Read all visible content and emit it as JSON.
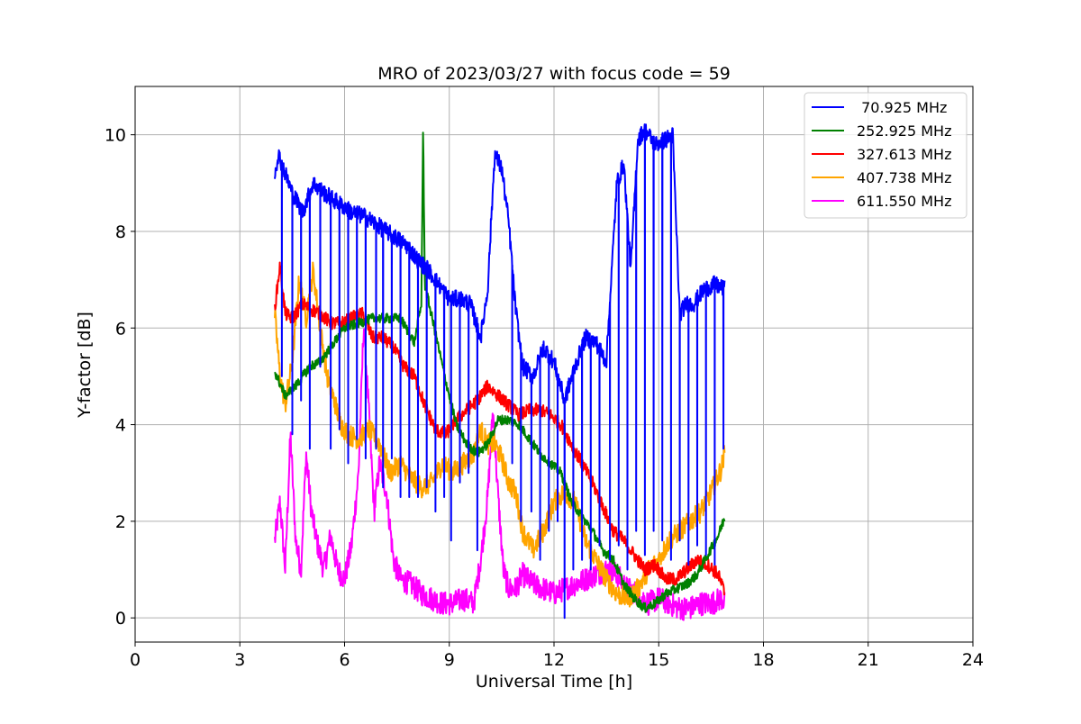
{
  "chart_data": {
    "type": "line",
    "title": "MRO of 2023/03/27 with focus code = 59",
    "xlabel": "Universal Time [h]",
    "ylabel": "Y-factor [dB]",
    "xlim": [
      0,
      24
    ],
    "ylim": [
      -0.5,
      11
    ],
    "xticks": [
      0,
      3,
      6,
      9,
      12,
      15,
      18,
      21,
      24
    ],
    "yticks": [
      0,
      2,
      4,
      6,
      8,
      10
    ],
    "grid": true,
    "legend_position": "top-right",
    "series": [
      {
        "name": " 70.925 MHz",
        "color": "#0000ff",
        "x": [
          4.0,
          4.1,
          4.3,
          4.5,
          4.8,
          5.1,
          5.4,
          5.8,
          6.2,
          6.6,
          7.0,
          7.4,
          7.8,
          8.1,
          8.4,
          8.7,
          9.0,
          9.3,
          9.6,
          9.9,
          10.1,
          10.3,
          10.5,
          10.7,
          10.9,
          11.1,
          11.4,
          11.7,
          12.0,
          12.3,
          12.6,
          12.9,
          13.2,
          13.5,
          13.8,
          14.0,
          14.2,
          14.4,
          14.6,
          14.9,
          15.2,
          15.4,
          15.6,
          15.8,
          16.0,
          16.3,
          16.6,
          16.9
        ],
        "y": [
          9.2,
          9.6,
          9.2,
          8.8,
          8.4,
          9.0,
          8.8,
          8.6,
          8.4,
          8.3,
          8.1,
          7.9,
          7.7,
          7.4,
          7.2,
          6.9,
          6.6,
          6.6,
          6.5,
          5.8,
          6.8,
          9.6,
          9.3,
          8.2,
          6.4,
          5.2,
          5.0,
          5.6,
          5.3,
          4.5,
          5.2,
          5.8,
          5.7,
          5.3,
          9.0,
          9.4,
          7.2,
          9.9,
          10.1,
          9.8,
          9.9,
          10.0,
          6.3,
          6.5,
          6.5,
          6.8,
          6.9,
          6.8
        ],
        "dips": [
          {
            "x": 4.2,
            "y": 5.0
          },
          {
            "x": 4.5,
            "y": 3.8
          },
          {
            "x": 4.75,
            "y": 4.5
          },
          {
            "x": 5.0,
            "y": 3.5
          },
          {
            "x": 5.3,
            "y": 5.2
          },
          {
            "x": 5.6,
            "y": 3.5
          },
          {
            "x": 5.85,
            "y": 3.9
          },
          {
            "x": 6.1,
            "y": 3.2
          },
          {
            "x": 6.35,
            "y": 3.7
          },
          {
            "x": 6.6,
            "y": 3.3
          },
          {
            "x": 6.9,
            "y": 3.5
          },
          {
            "x": 7.1,
            "y": 2.7
          },
          {
            "x": 7.35,
            "y": 3.3
          },
          {
            "x": 7.6,
            "y": 2.5
          },
          {
            "x": 7.85,
            "y": 2.5
          },
          {
            "x": 8.1,
            "y": 2.5
          },
          {
            "x": 8.35,
            "y": 2.7
          },
          {
            "x": 8.6,
            "y": 2.2
          },
          {
            "x": 8.85,
            "y": 2.5
          },
          {
            "x": 9.05,
            "y": 1.6
          },
          {
            "x": 9.3,
            "y": 2.8
          },
          {
            "x": 9.55,
            "y": 3.0
          },
          {
            "x": 9.8,
            "y": 1.4
          },
          {
            "x": 10.8,
            "y": 3.2
          },
          {
            "x": 11.05,
            "y": 2.0
          },
          {
            "x": 11.35,
            "y": 2.2
          },
          {
            "x": 11.6,
            "y": 1.2
          },
          {
            "x": 11.85,
            "y": 1.8
          },
          {
            "x": 12.1,
            "y": 2.0
          },
          {
            "x": 12.3,
            "y": 0.0
          },
          {
            "x": 12.55,
            "y": 1.0
          },
          {
            "x": 12.8,
            "y": 1.2
          },
          {
            "x": 13.05,
            "y": 1.0
          },
          {
            "x": 13.3,
            "y": 1.5
          },
          {
            "x": 13.6,
            "y": 1.2
          },
          {
            "x": 13.85,
            "y": 1.5
          },
          {
            "x": 14.1,
            "y": 1.0
          },
          {
            "x": 14.35,
            "y": 1.8
          },
          {
            "x": 14.6,
            "y": 1.3
          },
          {
            "x": 14.85,
            "y": 1.8
          },
          {
            "x": 15.1,
            "y": 1.6
          },
          {
            "x": 15.35,
            "y": 1.2
          },
          {
            "x": 15.6,
            "y": 1.6
          },
          {
            "x": 15.85,
            "y": 1.1
          },
          {
            "x": 16.1,
            "y": 1.5
          },
          {
            "x": 16.35,
            "y": 1.3
          },
          {
            "x": 16.6,
            "y": 1.1
          },
          {
            "x": 16.85,
            "y": 3.5
          }
        ]
      },
      {
        "name": "252.925 MHz",
        "color": "#008000",
        "x": [
          4.0,
          4.3,
          4.6,
          5.0,
          5.3,
          5.6,
          6.0,
          6.4,
          6.8,
          7.2,
          7.6,
          8.0,
          8.2,
          8.25,
          8.3,
          8.6,
          8.9,
          9.2,
          9.5,
          9.8,
          10.1,
          10.4,
          10.7,
          11.0,
          11.3,
          11.6,
          11.9,
          12.2,
          12.5,
          12.8,
          13.1,
          13.4,
          13.7,
          14.0,
          14.3,
          14.6,
          14.9,
          15.2,
          15.5,
          15.8,
          16.1,
          16.4,
          16.7,
          16.9
        ],
        "y": [
          5.1,
          4.6,
          4.8,
          5.2,
          5.3,
          5.6,
          6.0,
          6.1,
          6.2,
          6.2,
          6.2,
          5.7,
          6.5,
          10.1,
          6.9,
          5.9,
          4.9,
          4.0,
          3.6,
          3.4,
          3.6,
          4.1,
          4.1,
          4.0,
          3.7,
          3.4,
          3.2,
          3.0,
          2.4,
          2.1,
          1.8,
          1.4,
          1.2,
          0.7,
          0.4,
          0.2,
          0.3,
          0.5,
          0.6,
          0.7,
          0.9,
          1.3,
          1.7,
          2.1
        ]
      },
      {
        "name": "327.613 MHz",
        "color": "#ff0000",
        "x": [
          4.0,
          4.15,
          4.3,
          4.5,
          4.8,
          5.0,
          5.3,
          5.6,
          5.9,
          6.2,
          6.5,
          6.8,
          7.1,
          7.4,
          7.7,
          8.0,
          8.3,
          8.6,
          8.9,
          9.2,
          9.5,
          9.8,
          10.1,
          10.4,
          10.7,
          11.0,
          11.3,
          11.6,
          11.9,
          12.2,
          12.5,
          12.8,
          13.1,
          13.4,
          13.7,
          14.0,
          14.3,
          14.6,
          14.9,
          15.2,
          15.5,
          15.8,
          16.1,
          16.4,
          16.7,
          16.9
        ],
        "y": [
          6.4,
          7.3,
          6.3,
          6.2,
          6.5,
          6.4,
          6.3,
          6.1,
          6.1,
          6.2,
          6.3,
          5.8,
          5.8,
          5.6,
          5.2,
          5.0,
          4.4,
          3.9,
          3.8,
          4.1,
          4.3,
          4.5,
          4.8,
          4.6,
          4.4,
          4.2,
          4.3,
          4.3,
          4.2,
          4.0,
          3.6,
          3.2,
          2.8,
          2.3,
          1.8,
          1.6,
          1.3,
          1.0,
          1.1,
          0.8,
          0.8,
          1.0,
          1.2,
          1.1,
          0.9,
          0.5
        ]
      },
      {
        "name": "407.738 MHz",
        "color": "#ffa500",
        "x": [
          4.0,
          4.15,
          4.3,
          4.5,
          4.7,
          4.9,
          5.1,
          5.3,
          5.5,
          5.7,
          5.9,
          6.1,
          6.4,
          6.7,
          7.0,
          7.3,
          7.6,
          7.9,
          8.2,
          8.5,
          8.8,
          9.1,
          9.4,
          9.7,
          9.9,
          10.1,
          10.3,
          10.5,
          10.7,
          10.9,
          11.1,
          11.4,
          11.7,
          12.0,
          12.3,
          12.6,
          12.9,
          13.2,
          13.5,
          13.8,
          14.1,
          14.4,
          14.7,
          15.0,
          15.3,
          15.6,
          15.9,
          16.2,
          16.5,
          16.8,
          16.9
        ],
        "y": [
          6.3,
          5.0,
          4.4,
          5.3,
          7.0,
          6.2,
          7.2,
          6.0,
          5.0,
          4.5,
          4.0,
          3.8,
          3.7,
          3.9,
          3.6,
          3.0,
          3.2,
          2.9,
          2.7,
          2.8,
          3.2,
          3.0,
          3.2,
          3.4,
          3.9,
          3.6,
          3.6,
          3.3,
          2.8,
          2.6,
          1.8,
          1.4,
          1.8,
          2.4,
          2.6,
          2.4,
          1.6,
          1.2,
          0.8,
          0.5,
          0.4,
          0.6,
          1.0,
          1.2,
          1.6,
          1.8,
          2.0,
          2.2,
          2.6,
          3.1,
          3.5
        ]
      },
      {
        "name": "611.550 MHz",
        "color": "#ff00ff",
        "x": [
          4.0,
          4.15,
          4.3,
          4.45,
          4.6,
          4.75,
          4.9,
          5.05,
          5.2,
          5.4,
          5.6,
          5.8,
          6.0,
          6.2,
          6.4,
          6.55,
          6.7,
          6.85,
          7.0,
          7.2,
          7.4,
          7.6,
          7.9,
          8.2,
          8.5,
          8.8,
          9.1,
          9.4,
          9.7,
          9.9,
          10.1,
          10.25,
          10.4,
          10.55,
          10.7,
          10.9,
          11.1,
          11.4,
          11.7,
          12.0,
          12.3,
          12.6,
          12.9,
          13.2,
          13.5,
          13.8,
          14.1,
          14.4,
          14.7,
          15.0,
          15.3,
          15.6,
          15.9,
          16.2,
          16.5,
          16.8,
          16.9
        ],
        "y": [
          1.6,
          2.4,
          1.0,
          3.8,
          1.6,
          1.0,
          3.4,
          2.2,
          1.6,
          1.0,
          1.7,
          1.0,
          0.8,
          1.5,
          3.0,
          6.1,
          4.2,
          2.2,
          3.2,
          2.6,
          1.2,
          0.8,
          0.7,
          0.5,
          0.4,
          0.3,
          0.3,
          0.4,
          0.3,
          1.2,
          2.5,
          4.3,
          2.5,
          1.0,
          0.6,
          0.6,
          0.9,
          0.7,
          0.6,
          0.5,
          0.6,
          0.7,
          0.8,
          0.9,
          1.0,
          0.9,
          0.6,
          0.5,
          0.3,
          0.4,
          0.3,
          0.2,
          0.2,
          0.3,
          0.3,
          0.4,
          0.3
        ]
      }
    ]
  }
}
